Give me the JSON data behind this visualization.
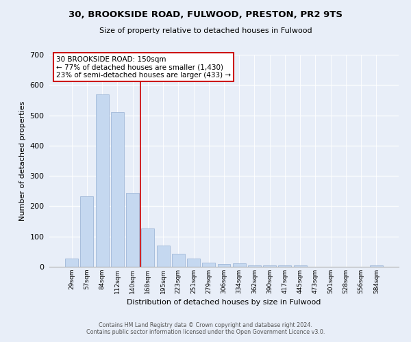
{
  "title": "30, BROOKSIDE ROAD, FULWOOD, PRESTON, PR2 9TS",
  "subtitle": "Size of property relative to detached houses in Fulwood",
  "xlabel": "Distribution of detached houses by size in Fulwood",
  "ylabel": "Number of detached properties",
  "bar_labels": [
    "29sqm",
    "57sqm",
    "84sqm",
    "112sqm",
    "140sqm",
    "168sqm",
    "195sqm",
    "223sqm",
    "251sqm",
    "279sqm",
    "306sqm",
    "334sqm",
    "362sqm",
    "390sqm",
    "417sqm",
    "445sqm",
    "473sqm",
    "501sqm",
    "528sqm",
    "556sqm",
    "584sqm"
  ],
  "bar_values": [
    28,
    232,
    570,
    510,
    243,
    127,
    70,
    42,
    27,
    13,
    10,
    11,
    4,
    4,
    4,
    4,
    0,
    0,
    0,
    0,
    5
  ],
  "bar_color_normal": "#c5d8f0",
  "bar_color_highlight": "#c5d8f0",
  "vline_color": "#cc0000",
  "vline_index": 4,
  "annotation_title": "30 BROOKSIDE ROAD: 150sqm",
  "annotation_line1": "← 77% of detached houses are smaller (1,430)",
  "annotation_line2": "23% of semi-detached houses are larger (433) →",
  "annotation_box_color": "#ffffff",
  "annotation_box_edge": "#cc0000",
  "ylim": [
    0,
    700
  ],
  "yticks": [
    0,
    100,
    200,
    300,
    400,
    500,
    600,
    700
  ],
  "footer_line1": "Contains HM Land Registry data © Crown copyright and database right 2024.",
  "footer_line2": "Contains public sector information licensed under the Open Government Licence v3.0.",
  "bg_color": "#e8eef8"
}
